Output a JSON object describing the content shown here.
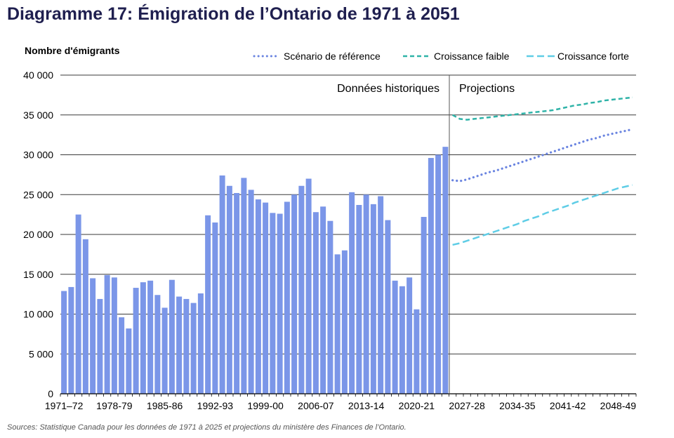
{
  "chart_data": {
    "type": "bar",
    "title": "Diagramme 17: Émigration de l’Ontario de 1971 à 2051",
    "ylabel": "Nombre d'émigrants",
    "ylim": [
      0,
      40000
    ],
    "yticks": [
      0,
      5000,
      10000,
      15000,
      20000,
      25000,
      30000,
      35000,
      40000
    ],
    "ytick_labels": [
      "0",
      "5 000",
      "10 000",
      "15 000",
      "20 000",
      "25 000",
      "30 000",
      "35 000",
      "40 000"
    ],
    "xtick_labels": [
      "1971–72",
      "1978-79",
      "1985-86",
      "1992-93",
      "1999-00",
      "2006-07",
      "2013-14",
      "2020-21",
      "2027-28",
      "2034-35",
      "2041-42",
      "2048-49"
    ],
    "xtick_start_years": [
      1971,
      1978,
      1985,
      1992,
      1999,
      2006,
      2013,
      2020,
      2027,
      2034,
      2041,
      2048
    ],
    "grid": true,
    "legend_position": "top",
    "section_labels": {
      "historical": "Données historiques",
      "projections": "Projections"
    },
    "historical": {
      "start_year": 1971,
      "color": "#7b96e8",
      "values": [
        12900,
        13400,
        22500,
        19400,
        14500,
        11900,
        14900,
        14600,
        9600,
        8200,
        13300,
        14000,
        14200,
        12400,
        10800,
        14300,
        12200,
        11900,
        11400,
        12600,
        22400,
        21500,
        27400,
        26100,
        25200,
        27100,
        25600,
        24400,
        24000,
        22700,
        22600,
        24100,
        25000,
        26100,
        27000,
        22800,
        23500,
        21700,
        17500,
        18000,
        25300,
        23700,
        25000,
        23800,
        24800,
        21800,
        14200,
        13500,
        14600,
        10600,
        22200,
        29600,
        30000,
        31000
      ]
    },
    "projection_years": [
      2025,
      2026,
      2027,
      2028,
      2029,
      2030,
      2031,
      2032,
      2033,
      2034,
      2035,
      2036,
      2037,
      2038,
      2039,
      2040,
      2041,
      2042,
      2043,
      2044,
      2045,
      2046,
      2047,
      2048,
      2049,
      2050
    ],
    "series": [
      {
        "name": "Scénario de référence",
        "color": "#6a84e0",
        "dash": "dot",
        "values": [
          26800,
          26700,
          26900,
          27200,
          27500,
          27800,
          28000,
          28300,
          28600,
          28900,
          29200,
          29500,
          29800,
          30100,
          30400,
          30700,
          31000,
          31300,
          31600,
          31900,
          32100,
          32400,
          32600,
          32800,
          33000,
          33200
        ]
      },
      {
        "name": "Croissance faible",
        "color": "#2fb3a8",
        "dash": "dash",
        "values": [
          35000,
          34500,
          34400,
          34500,
          34600,
          34700,
          34800,
          34900,
          35000,
          35100,
          35200,
          35300,
          35400,
          35500,
          35600,
          35800,
          36000,
          36200,
          36300,
          36500,
          36600,
          36800,
          36900,
          37000,
          37100,
          37200
        ]
      },
      {
        "name": "Croissance forte",
        "color": "#5fcde6",
        "dash": "longdash",
        "values": [
          18700,
          18900,
          19200,
          19500,
          19800,
          20100,
          20400,
          20700,
          21000,
          21300,
          21700,
          22000,
          22300,
          22700,
          23000,
          23300,
          23600,
          24000,
          24300,
          24600,
          24900,
          25200,
          25500,
          25800,
          26000,
          26200
        ]
      }
    ],
    "source": "Sources: Statistique Canada pour les données de 1971 à 2025 et projections du ministère des Finances de l’Ontario."
  }
}
